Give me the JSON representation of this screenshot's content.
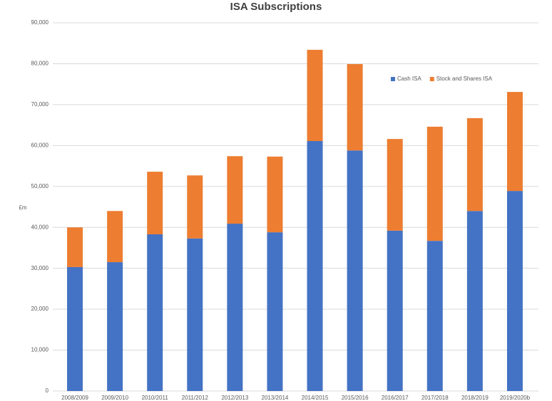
{
  "chart_data": {
    "type": "stacked_bar",
    "title": "ISA Subscriptions",
    "y_label": "£m",
    "categories": [
      "2008/2009",
      "2009/2010",
      "2010/2011",
      "2011/2012",
      "2012/2013",
      "2013/2014",
      "2014/2015",
      "2015/2016",
      "2016/2017",
      "2017/2018",
      "2018/2019",
      "2019/2020b"
    ],
    "series": [
      {
        "name": "Cash ISA",
        "color": "#4472c4",
        "values": [
          30300,
          31500,
          38300,
          37300,
          40900,
          38800,
          61100,
          58800,
          39200,
          36700,
          44000,
          48900
        ]
      },
      {
        "name": "Stock and Shares ISA",
        "color": "#ed7d31",
        "values": [
          9700,
          12500,
          15300,
          15400,
          16500,
          18500,
          22300,
          21100,
          22400,
          27900,
          22700,
          24200
        ]
      }
    ],
    "ylim": [
      0,
      90000
    ],
    "yticks": [
      0,
      {
        "value": 10000,
        "label": "10,000"
      },
      {
        "value": 20000,
        "label": "20,000"
      },
      {
        "value": 30000,
        "label": "30,000"
      },
      {
        "value": 40000,
        "label": "40,000"
      },
      {
        "value": 50000,
        "label": "50,000"
      },
      {
        "value": 60000,
        "label": "60,000"
      },
      {
        "value": 70000,
        "label": "70,000"
      },
      {
        "value": 80000,
        "label": "80,000"
      },
      {
        "value": 90000,
        "label": "90,000"
      }
    ],
    "grid": true,
    "legend": "top-right"
  }
}
